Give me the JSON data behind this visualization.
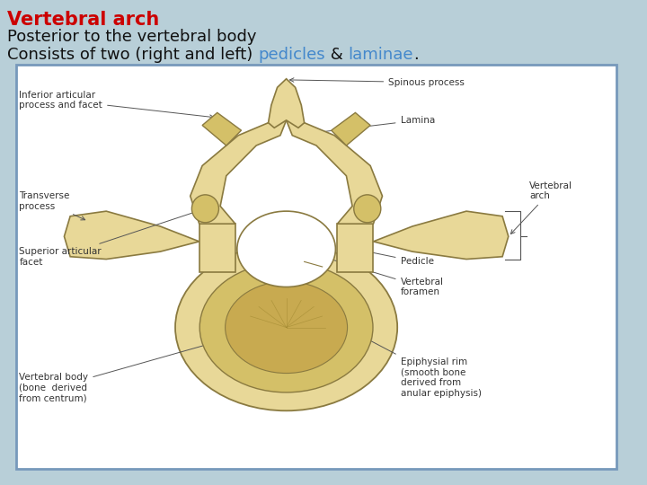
{
  "title_bold": "Vertebral arch",
  "title_bold_color": "#cc0000",
  "line2": "Posterior to the vertebral body",
  "line3_prefix": "Consists of two (right and left) ",
  "line3_link1": "pedicles",
  "line3_link1_color": "#4488cc",
  "line3_middle": " & ",
  "line3_link2": "laminae",
  "line3_link2_color": "#4488cc",
  "line3_suffix": ".",
  "text_color": "#111111",
  "font_size_title": 15,
  "font_size_body": 13,
  "bg_color": "#b8cfd8",
  "box_bg": "#ffffff",
  "box_border_color": "#7799bb",
  "bone_fill": "#e8d898",
  "bone_edge": "#8a7a40",
  "bone_inner": "#d4c068",
  "bone_dark": "#c0a840",
  "label_color": "#333333",
  "label_fs": 7.5,
  "arrow_color": "#555555"
}
